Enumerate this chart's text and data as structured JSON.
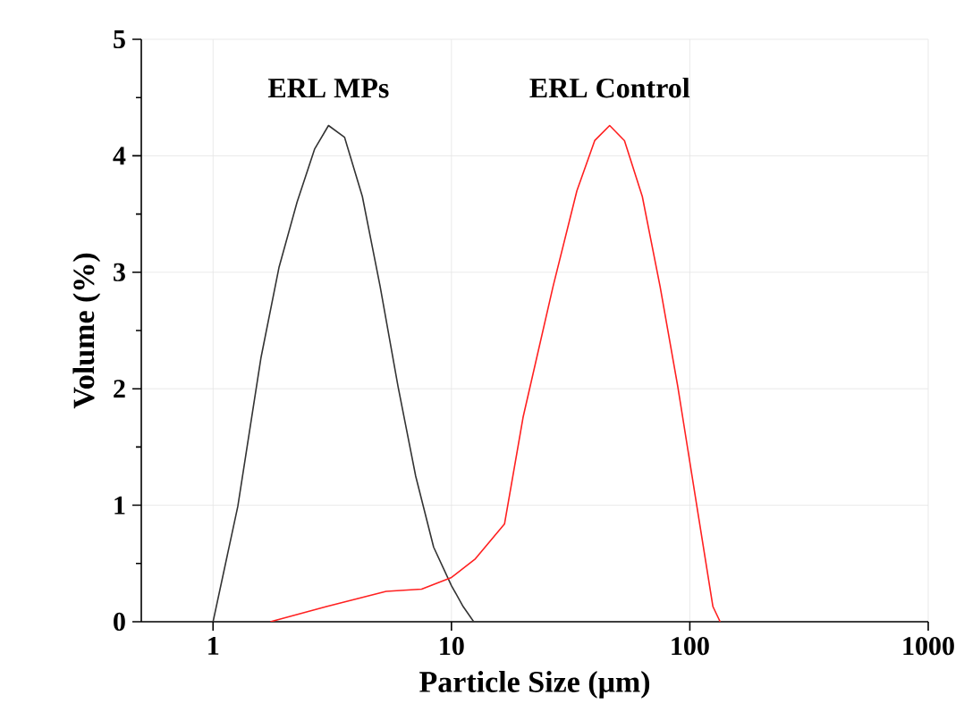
{
  "chart_data": {
    "type": "line",
    "xlabel": "Particle Size (μm)",
    "ylabel": "Volume (%)",
    "log": "x",
    "xlim": [
      0.5,
      1000
    ],
    "ylim": [
      0,
      5
    ],
    "xticks": [
      1,
      10,
      100,
      1000
    ],
    "yticks": [
      0,
      1,
      2,
      3,
      4,
      5
    ],
    "grid": true,
    "marker": "none",
    "line_style": "solid",
    "annotations": [
      "ERL MPs",
      "ERL Control"
    ],
    "series": [
      {
        "color": "#333333",
        "x": [
          1,
          1.27,
          1.59,
          1.89,
          2.25,
          2.67,
          3.05,
          3.56,
          4.23,
          5.02,
          5.97,
          7.08,
          8.42,
          10,
          11.2,
          12.4
        ],
        "values": [
          0,
          0.99,
          2.27,
          3.04,
          3.6,
          4.06,
          4.26,
          4.16,
          3.65,
          2.88,
          2.02,
          1.25,
          0.64,
          0.31,
          0.13,
          0
        ]
      },
      {
        "color": "#ff2020",
        "x": [
          1.74,
          2.99,
          5.32,
          7.5,
          10,
          12.6,
          16.7,
          20,
          26.7,
          33.6,
          39.9,
          46.1,
          53.2,
          63.2,
          75,
          89,
          109,
          125,
          134
        ],
        "values": [
          0,
          0.13,
          0.26,
          0.28,
          0.38,
          0.54,
          0.84,
          1.76,
          2.88,
          3.7,
          4.13,
          4.26,
          4.13,
          3.65,
          2.88,
          2.02,
          0.89,
          0.13,
          0
        ]
      }
    ]
  }
}
